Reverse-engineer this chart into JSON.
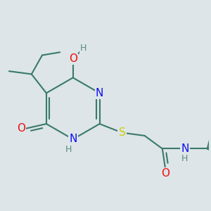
{
  "bg_color": "#dde5e8",
  "atom_colors": {
    "C": "#3a7a6a",
    "N": "#1010ee",
    "O": "#ee1010",
    "S": "#cccc00",
    "H": "#5a8a7a"
  },
  "bond_color": "#3a7a6a",
  "bond_lw": 1.5
}
